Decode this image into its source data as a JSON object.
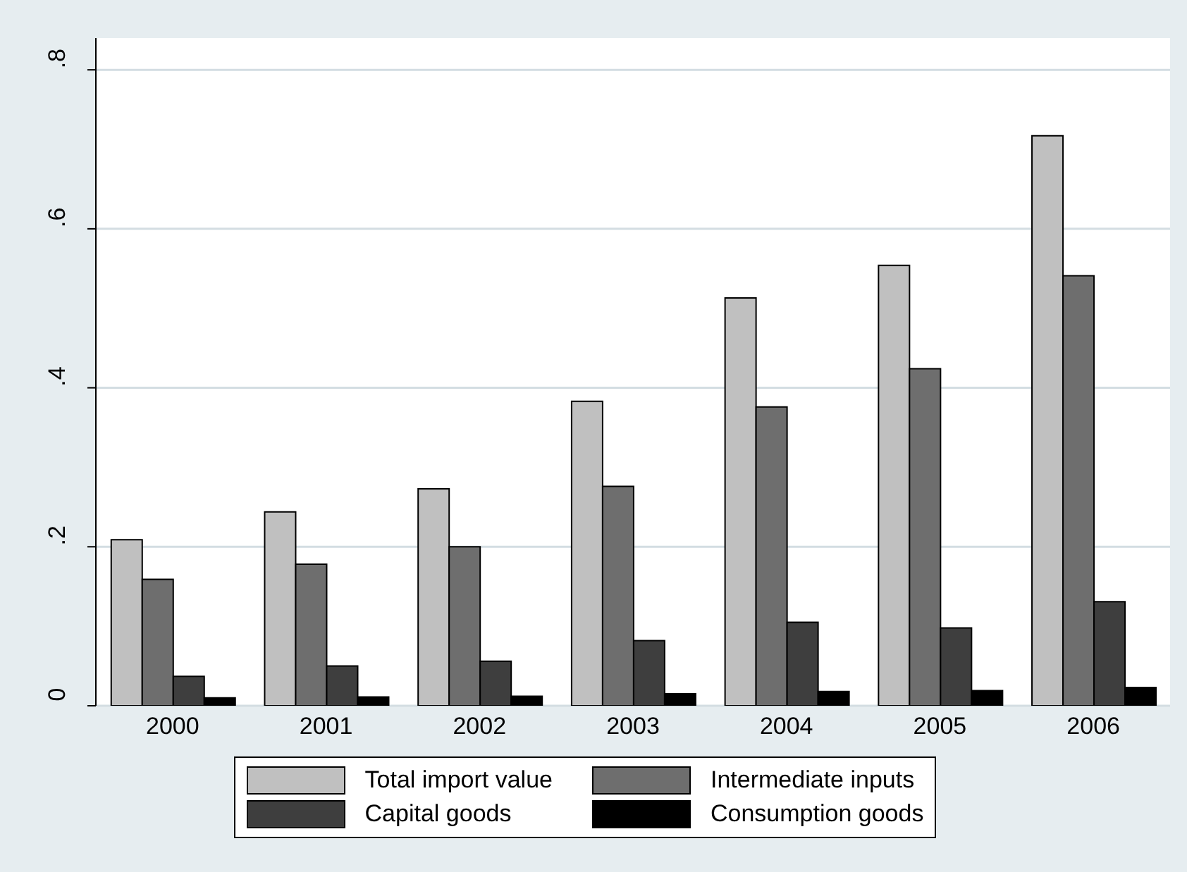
{
  "chart_data": {
    "type": "bar",
    "categories": [
      "2000",
      "2001",
      "2002",
      "2003",
      "2004",
      "2005",
      "2006"
    ],
    "series": [
      {
        "name": "Total import value",
        "color": "#c0c0c0",
        "values": [
          0.209,
          0.244,
          0.273,
          0.383,
          0.513,
          0.554,
          0.717
        ]
      },
      {
        "name": "Intermediate inputs",
        "color": "#6e6e6e",
        "values": [
          0.159,
          0.178,
          0.2,
          0.276,
          0.376,
          0.424,
          0.541
        ]
      },
      {
        "name": "Capital goods",
        "color": "#3e3e3e",
        "values": [
          0.037,
          0.05,
          0.056,
          0.082,
          0.105,
          0.098,
          0.131
        ]
      },
      {
        "name": "Consumption goods",
        "color": "#000000",
        "values": [
          0.01,
          0.011,
          0.012,
          0.015,
          0.018,
          0.019,
          0.023
        ]
      }
    ],
    "ylim": [
      0,
      0.84
    ],
    "yticks": [
      {
        "value": 0,
        "label": "0"
      },
      {
        "value": 0.2,
        "label": ".2"
      },
      {
        "value": 0.4,
        "label": ".4"
      },
      {
        "value": 0.6,
        "label": ".6"
      },
      {
        "value": 0.8,
        "label": ".8"
      }
    ],
    "grid": "y",
    "legend": "bottom"
  }
}
